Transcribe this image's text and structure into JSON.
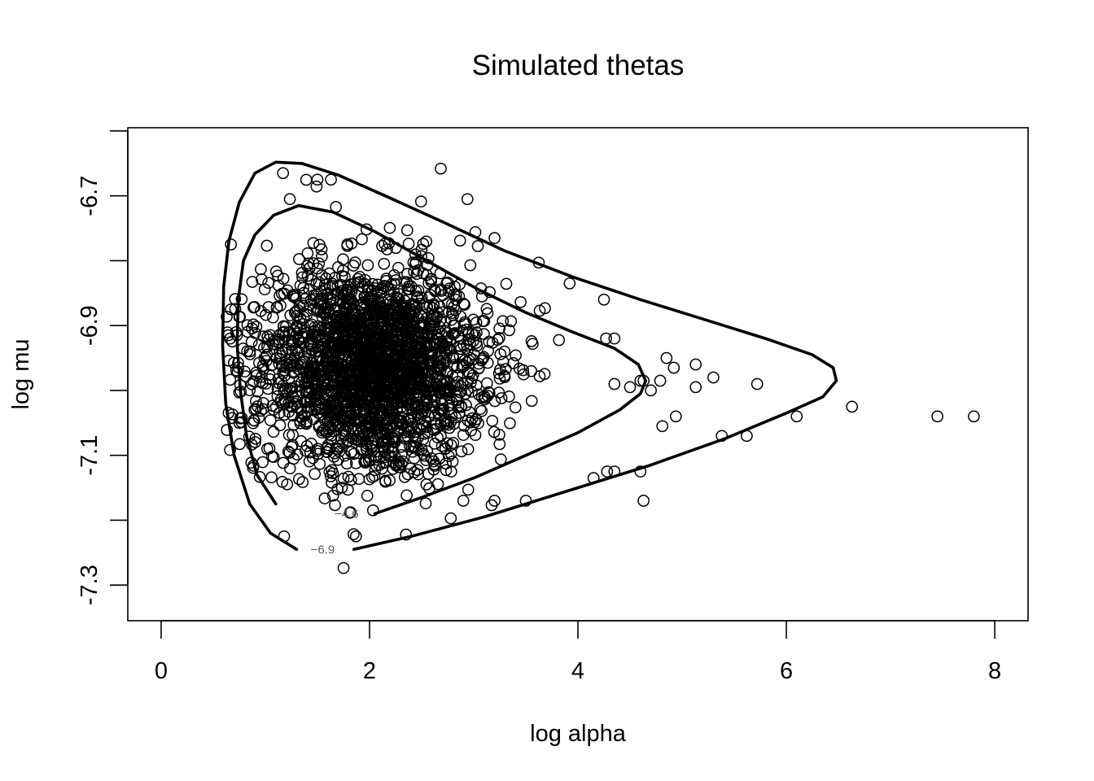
{
  "chart_data": {
    "type": "scatter",
    "title": "Simulated thetas",
    "xlabel": "log alpha",
    "ylabel": "log mu",
    "xlim": [
      -0.32,
      8.32
    ],
    "ylim": [
      -7.355,
      -6.595
    ],
    "x_ticks": [
      0,
      2,
      4,
      6,
      8
    ],
    "x_tick_labels": [
      "0",
      "2",
      "4",
      "6",
      "8"
    ],
    "y_ticks": [
      -7.3,
      -7.2,
      -7.1,
      -7.0,
      -6.9,
      -6.8,
      -6.7,
      -6.6
    ],
    "y_tick_labels": [
      "-7.3",
      "",
      "-7.1",
      "",
      "-6.9",
      "",
      "-6.7",
      ""
    ],
    "grid": false,
    "marker": "open-circle",
    "point_color": "#000000",
    "contour_color": "#000000",
    "contours": [
      {
        "label": "−4.6",
        "label_at": [
          1.78,
          -7.19
        ],
        "points": [
          [
            1.1,
            -7.175
          ],
          [
            0.92,
            -7.13
          ],
          [
            0.82,
            -7.07
          ],
          [
            0.76,
            -7.0
          ],
          [
            0.73,
            -6.93
          ],
          [
            0.74,
            -6.86
          ],
          [
            0.79,
            -6.8
          ],
          [
            0.9,
            -6.76
          ],
          [
            1.08,
            -6.73
          ],
          [
            1.32,
            -6.715
          ],
          [
            1.65,
            -6.725
          ],
          [
            2.05,
            -6.755
          ],
          [
            2.55,
            -6.8
          ],
          [
            3.05,
            -6.845
          ],
          [
            3.5,
            -6.88
          ],
          [
            3.95,
            -6.91
          ],
          [
            4.35,
            -6.935
          ],
          [
            4.58,
            -6.96
          ],
          [
            4.65,
            -6.985
          ],
          [
            4.6,
            -7.005
          ],
          [
            4.4,
            -7.03
          ],
          [
            4.0,
            -7.065
          ],
          [
            3.5,
            -7.1
          ],
          [
            3.0,
            -7.135
          ],
          [
            2.5,
            -7.165
          ],
          [
            2.05,
            -7.19
          ]
        ]
      },
      {
        "label": "−6.9",
        "label_at": [
          1.55,
          -7.245
        ],
        "points": [
          [
            1.3,
            -7.245
          ],
          [
            1.05,
            -7.22
          ],
          [
            0.85,
            -7.175
          ],
          [
            0.7,
            -7.1
          ],
          [
            0.62,
            -7.02
          ],
          [
            0.59,
            -6.93
          ],
          [
            0.6,
            -6.84
          ],
          [
            0.65,
            -6.77
          ],
          [
            0.75,
            -6.71
          ],
          [
            0.9,
            -6.665
          ],
          [
            1.1,
            -6.648
          ],
          [
            1.35,
            -6.65
          ],
          [
            1.7,
            -6.668
          ],
          [
            2.15,
            -6.7
          ],
          [
            2.7,
            -6.74
          ],
          [
            3.3,
            -6.785
          ],
          [
            3.95,
            -6.825
          ],
          [
            4.6,
            -6.86
          ],
          [
            5.2,
            -6.89
          ],
          [
            5.8,
            -6.92
          ],
          [
            6.25,
            -6.945
          ],
          [
            6.45,
            -6.965
          ],
          [
            6.48,
            -6.985
          ],
          [
            6.35,
            -7.01
          ],
          [
            6.0,
            -7.035
          ],
          [
            5.4,
            -7.075
          ],
          [
            4.7,
            -7.115
          ],
          [
            3.9,
            -7.155
          ],
          [
            3.1,
            -7.195
          ],
          [
            2.4,
            -7.225
          ],
          [
            1.85,
            -7.245
          ]
        ]
      }
    ],
    "core": {
      "n": 2400,
      "x_mean": 2.03,
      "x_sd": 0.55,
      "x_min": 0.62,
      "y_mean": -6.965,
      "y_sd": 0.08
    },
    "outliers": [
      [
        1.17,
        -6.665
      ],
      [
        1.5,
        -6.675
      ],
      [
        1.63,
        -6.675
      ],
      [
        3.2,
        -6.765
      ],
      [
        0.67,
        -6.775
      ],
      [
        3.92,
        -6.835
      ],
      [
        4.25,
        -6.86
      ],
      [
        0.67,
        -6.875
      ],
      [
        4.27,
        -6.92
      ],
      [
        4.35,
        -6.92
      ],
      [
        4.85,
        -6.95
      ],
      [
        4.92,
        -6.965
      ],
      [
        5.13,
        -6.96
      ],
      [
        5.3,
        -6.98
      ],
      [
        5.72,
        -6.99
      ],
      [
        4.6,
        -6.985
      ],
      [
        4.35,
        -6.99
      ],
      [
        4.5,
        -6.995
      ],
      [
        4.63,
        -6.985
      ],
      [
        4.79,
        -6.985
      ],
      [
        5.13,
        -6.995
      ],
      [
        4.7,
        -7.0
      ],
      [
        6.63,
        -7.025
      ],
      [
        6.1,
        -7.04
      ],
      [
        7.45,
        -7.04
      ],
      [
        7.8,
        -7.04
      ],
      [
        4.94,
        -7.04
      ],
      [
        4.81,
        -7.055
      ],
      [
        5.38,
        -7.07
      ],
      [
        5.62,
        -7.07
      ],
      [
        4.15,
        -7.135
      ],
      [
        4.35,
        -7.125
      ],
      [
        4.28,
        -7.125
      ],
      [
        4.6,
        -7.125
      ],
      [
        4.63,
        -7.17
      ],
      [
        3.2,
        -7.17
      ],
      [
        3.5,
        -7.17
      ],
      [
        1.18,
        -7.225
      ],
      [
        1.87,
        -7.225
      ],
      [
        2.9,
        -7.17
      ],
      [
        0.75,
        -7.05
      ],
      [
        0.72,
        -6.91
      ]
    ]
  }
}
